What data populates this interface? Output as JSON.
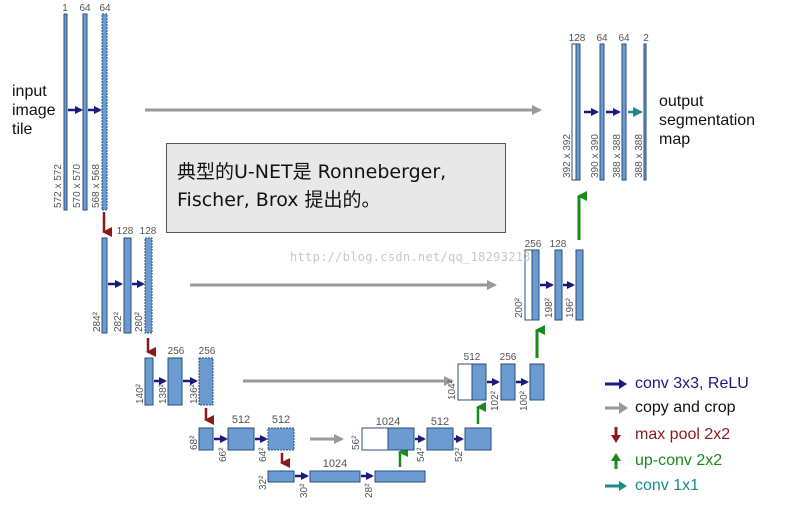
{
  "top_channels": {
    "c1": "1",
    "c2": "64",
    "c3": "64"
  },
  "input_label": [
    "input",
    "image",
    "tile"
  ],
  "size_572": "572 x 572",
  "size_570": "570 x 570",
  "size_568": "568 x 568",
  "level2": {
    "c1": "128",
    "c2": "128",
    "s1": "284²",
    "s2": "282²",
    "s3": "280²"
  },
  "level3": {
    "c1": "256",
    "c2": "256",
    "s1": "140²",
    "s2": "138²",
    "s3": "136²"
  },
  "level4": {
    "c1": "512",
    "c2": "512",
    "s1": "68²",
    "s2": "66²",
    "s3": "64²"
  },
  "level5": {
    "c1": "1024",
    "s1": "32²",
    "s2": "30²",
    "s3": "28²"
  },
  "up4": {
    "c1": "1024",
    "c2": "512",
    "s1": "56²",
    "s2": "54²",
    "s3": "52²"
  },
  "up3": {
    "c1": "512",
    "c2": "256",
    "s1": "104²",
    "s2": "102²",
    "s3": "100²"
  },
  "up2": {
    "c1": "256",
    "c2": "128",
    "s1": "200²",
    "s2": "198²",
    "s3": "196²"
  },
  "up1": {
    "c1": "128",
    "c2": "64",
    "c3": "64",
    "c4": "2",
    "s1": "392 x 392",
    "s2": "390 x 390",
    "s3": "388 x 388",
    "s4": "388 x 388"
  },
  "output_label": [
    "output",
    "segmentation",
    "map"
  ],
  "caption": {
    "line1": "典型的U-NET是 Ronneberger,",
    "line2": "Fischer, Brox 提出的。"
  },
  "watermark": "http://blog.csdn.net/qq_18293213",
  "legend": [
    {
      "label": "conv 3x3, ReLU",
      "color": "#1a1a7a"
    },
    {
      "label": "copy and crop",
      "color": "#9a9a9a"
    },
    {
      "label": "max pool 2x2",
      "color": "#8b1a1a"
    },
    {
      "label": "up-conv 2x2",
      "color": "#1a8a1a"
    },
    {
      "label": "conv 1x1",
      "color": "#1a8a8a"
    }
  ],
  "colors": {
    "block_fill": "#6b9bd1",
    "block_stroke": "#2b4f7a",
    "tick_text": "#555555"
  }
}
